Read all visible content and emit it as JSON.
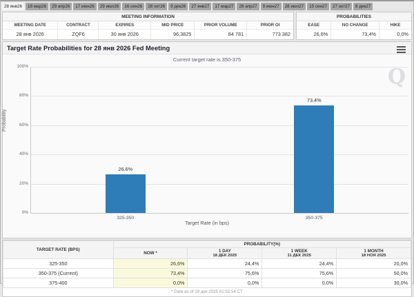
{
  "colors": {
    "bar": "#2e7cb8",
    "now_column_bg": "#fbf9dc",
    "tab_bg": "#a6a6a6",
    "tab_selected_bg": "#f4f4f4"
  },
  "tabs": {
    "items": [
      {
        "label": "28 янв26",
        "selected": true
      },
      {
        "label": "18 мар26",
        "selected": false
      },
      {
        "label": "29 апр26",
        "selected": false
      },
      {
        "label": "17 июн26",
        "selected": false
      },
      {
        "label": "29 июл26",
        "selected": false
      },
      {
        "label": "16 сен26",
        "selected": false
      },
      {
        "label": "28 окт26",
        "selected": false
      },
      {
        "label": "9 дек26",
        "selected": false
      },
      {
        "label": "27 янв27",
        "selected": false
      },
      {
        "label": "17 мар27",
        "selected": false
      },
      {
        "label": "28 апр27",
        "selected": false
      },
      {
        "label": "9 июн27",
        "selected": false
      },
      {
        "label": "28 июл27",
        "selected": false
      },
      {
        "label": "15 сен27",
        "selected": false
      },
      {
        "label": "27 окт27",
        "selected": false
      },
      {
        "label": "8 дек27",
        "selected": false
      }
    ]
  },
  "meeting_info": {
    "title": "MEETING INFORMATION",
    "columns": [
      "MEETING DATE",
      "CONTRACT",
      "EXPIRES",
      "MID PRICE",
      "PRIOR VOLUME",
      "PRIOR OI"
    ],
    "values": [
      "28 янв 2026",
      "ZQF6",
      "30 янв 2026",
      "96,3825",
      "84 781",
      "773 382"
    ]
  },
  "probabilities_panel": {
    "title": "PROBABILITIES",
    "columns": [
      "EASE",
      "NO CHANGE",
      "HIKE"
    ],
    "values": [
      "26,6%",
      "73,4%",
      "0,0%"
    ]
  },
  "chart": {
    "title": "Target Rate Probabilities for 28 янв 2026 Fed Meeting",
    "subtitle": "Current target rate is 350-375",
    "watermark": "Q"
  },
  "chart_data": {
    "type": "bar",
    "categories": [
      "325-350",
      "350-375"
    ],
    "values": [
      26.6,
      73.4
    ],
    "bar_labels": [
      "26.6%",
      "73.4%"
    ],
    "title": "Target Rate Probabilities for 28 янв 2026 Fed Meeting",
    "subtitle": "Current target rate is 350-375",
    "xlabel": "Target Rate (in bps)",
    "ylabel": "Probability",
    "ylim": [
      0,
      100
    ],
    "ytick_step": 20,
    "ytick_suffix": "%",
    "grid": true,
    "legend": "none"
  },
  "prob_table": {
    "col1_header": "TARGET RATE (BPS)",
    "group_header": "PROBABILITY(%)",
    "sub_headers": [
      {
        "line1": "NOW *",
        "line2": ""
      },
      {
        "line1": "1 DAY",
        "line2": "18 ДЕК 2025"
      },
      {
        "line1": "1 WEEK",
        "line2": "11 ДЕК 2025"
      },
      {
        "line1": "1 MONTH",
        "line2": "18 НОЯ 2025"
      }
    ],
    "rows": [
      {
        "rate": "325-350",
        "now": "26,6%",
        "day": "24,4%",
        "week": "24,4%",
        "month": "20,0%"
      },
      {
        "rate": "350-375 (Current)",
        "now": "73,4%",
        "day": "75,6%",
        "week": "75,6%",
        "month": "50,0%"
      },
      {
        "rate": "375-400",
        "now": "0,0%",
        "day": "0,0%",
        "week": "0,0%",
        "month": "30,0%"
      }
    ],
    "footnote": "* Data as of 19 дек 2025 01:52:54 CT"
  }
}
